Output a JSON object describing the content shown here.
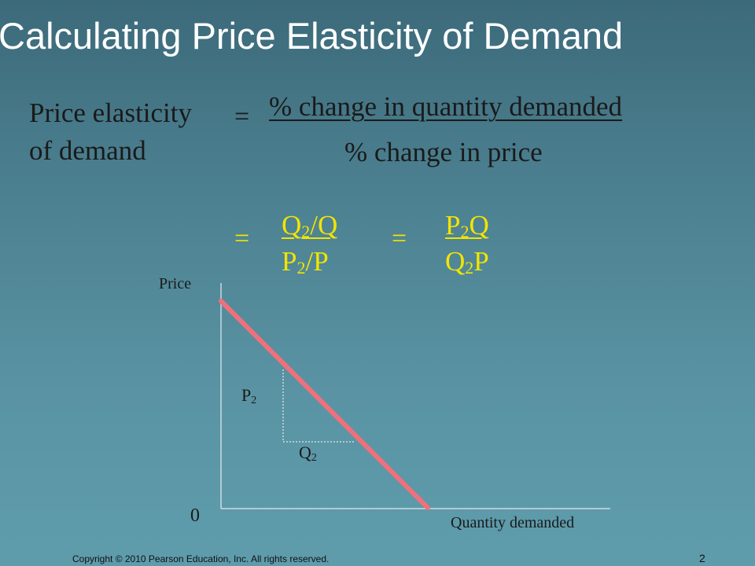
{
  "slide": {
    "title": "Calculating Price Elasticity of Demand",
    "lhs_line1": "Price elasticity",
    "lhs_line2": "of demand",
    "equals": "=",
    "main_numerator": "% change in quantity demanded",
    "main_denominator": "% change in price",
    "eq2_numerator": {
      "base": "Q",
      "sub": "2",
      "rest": "/Q"
    },
    "eq2_denominator": {
      "base": "P",
      "sub": "2",
      "rest": "/P"
    },
    "eq3_numerator": {
      "base": "P",
      "sub": "2",
      "rest": "Q"
    },
    "eq3_denominator": {
      "base": "Q",
      "sub": "2",
      "rest": "P"
    }
  },
  "graph": {
    "y_label": "Price",
    "x_label": "Quantity demanded",
    "origin_label": "0",
    "p_label": {
      "base": "P",
      "sub": "2"
    },
    "q_label": {
      "base": "Q",
      "sub": "2"
    },
    "curve_color": "#f0707a",
    "axis_color": "#ffffff"
  },
  "footer": {
    "copyright": "Copyright © 2010 Pearson Education, Inc. All rights reserved.",
    "page_number": "2"
  }
}
